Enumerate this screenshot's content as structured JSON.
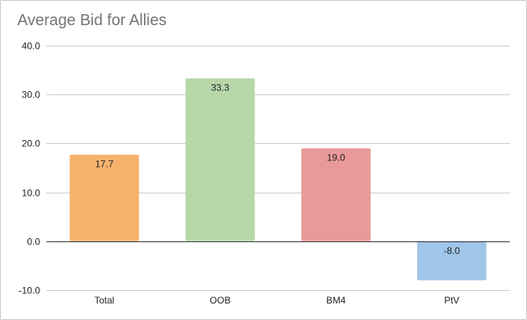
{
  "chart_data": {
    "type": "bar",
    "title": "Average Bid for Allies",
    "xlabel": "",
    "ylabel": "",
    "categories": [
      "Total",
      "OOB",
      "BM4",
      "PtV"
    ],
    "values": [
      17.7,
      33.3,
      19.0,
      -8.0
    ],
    "data_labels": [
      "17.7",
      "33.3",
      "19.0",
      "-8.0"
    ],
    "colors": [
      "#f6b26b",
      "#b6d7a8",
      "#ea9999",
      "#9fc5e8"
    ],
    "ylim": [
      -10,
      40
    ],
    "yticks": [
      40,
      30,
      20,
      10,
      0,
      -10
    ],
    "ytick_labels": [
      "40.0",
      "30.0",
      "20.0",
      "10.0",
      "0.0",
      "-10.0"
    ],
    "grid": true,
    "legend": "none"
  }
}
